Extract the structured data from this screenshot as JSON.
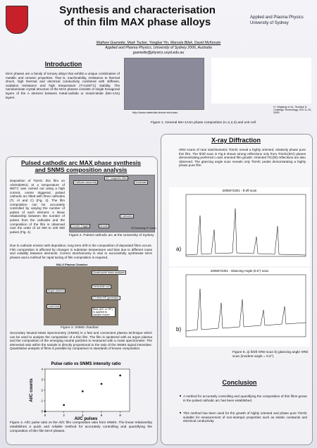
{
  "header": {
    "title": "Synthesis and characterisation of thin film MAX phase alloys",
    "institution": [
      "Applied and Plasma Physics",
      "University of Sydney"
    ],
    "authors": "Mathew Guenette, Mark Tucker, Yongbai Yin, Marcela Bilek, David McKenzie",
    "affiliation": "Applied and Plasma Physics, University of Sydney 2006, Australia",
    "email": "guenette@physics.usyd.edu.au"
  },
  "introduction": {
    "heading": "Introduction",
    "text": "MAX phases are a family of ternary alloys that exhibit a unique combination of metallic and ceramic properties. That is, machinability, resistance to thermal shock, high thermal and electrical conductivity combined with stiffness, oxidation resistance and high temperature (T>1400°C) stability. The nanolaminate crystal structure of the MAX phases consists of single hexagonal layers of the A element between metal-carbide or metal-nitride (Mn+1Xn) layers.",
    "url": "http://www.materials.drexel.edu/max",
    "reference": "H. Högberg et al., Surface & Coatings Technology 193: 6–10, 2005",
    "figure1_caption": "Figure 1. General Mn+1AXn phase composition (n=1,2,3) and unit cell"
  },
  "synthesis": {
    "heading": "Pulsed cathodic arc MAX phase synthesis and SNMS composition analysis",
    "text1": "Deposition of Ti3AlC thin film on Al2O3(0001) at a temperature of 900°C was carried out using a high current, centre triggered, pulsed cathodic arc fitted with three cathodes (Ti, Al and C) (Fig. 2). The film composition can be accurately controlled by varying the number of pulses of each element. A linear relationship between the number of pulses from the cathodes and the composition of the film is observed over the order of 10 000 to 100 000 pulses (Fig. 4).",
    "figure2_labels": [
      "Cathode assembly",
      "90° magnetic filter",
      "Substrate",
      "Cathodes",
      "Centre Trigger",
      "Anode",
      "3D Rendering: R. Danen"
    ],
    "figure2_caption": "Figure 2. Pulsed cathodic arc at the University of Sydney",
    "text2": "Due to cathode erosion with deposition, long term drift in the composition of deposited films occurs. Film composition is affected by changes in substrate temperature and bias due to different mass and volatility between elements. Correct stoichiometry is vital to successfully synthesise MAX phases and a method for rapid tuning of film composition is required.",
    "figure3_labels": [
      "INA-X Plasma Chamber",
      "Quadrupole mass analyser",
      "Heinzlotte coil",
      "Argon plasma",
      "27 MHz RF generator",
      "Load lock",
      "Bias (A/C or RF) is applied to sample holder"
    ],
    "figure3_caption": "Figure 3. SNMS chamber",
    "text3": "Secondary Neutral Mass Spectrometry (SNMS) is a fast and convenient plasma technique which can be used to analyse the composition of a thin film. The film is sputtered with an argon plasma and the composition of the emerging neutral particles is measured with a mass spectrometer. The elemental ratio within the sample is directly proportional to the ratio of the SNMS signal intensities. Quantitative analysis of films is possible by comparison to standards of known composition.",
    "figure4_caption": "Figure 4. Al/C pulse ratio vs the Al/C film composition ratio from SNMS. The linear relationship establishes a quick and reliable method for accurately controlling and quantifying the composition of thin film MAX phases."
  },
  "chart_data": {
    "type": "scatter",
    "title": "Pulse ratio vs SNMS intensity ratio",
    "x_label": "Al/C pulses",
    "y_label": "Al/C counts",
    "annotations": [
      "y = 0.4228x",
      "R² = 0.9503"
    ],
    "x": [
      0,
      2,
      4,
      6,
      8
    ],
    "values": [
      0,
      0.6,
      1.9,
      2.6,
      3.4
    ],
    "color": "#222222",
    "xlim": [
      0,
      9
    ],
    "ylim": [
      0,
      4
    ],
    "xticks": [
      0,
      2,
      4,
      6,
      8
    ],
    "yticks": [
      0,
      1,
      2,
      3,
      4
    ]
  },
  "xrd": {
    "heading": "X-ray Diffraction",
    "text": "XRD scans of near stoichiometric Ti3AlC reveal a highly oriented, relatively phase pure thin film. The θ/2θ scan in Fig.5 shows strong reflections only from Ti3AlC(00ℓ) planes demonstrating preferred c-axis oriented film growth. Oriented TiC(ℓℓℓ) reflections are also observed. The glancing angle scan reveals only Ti3AlC peaks demonstrating a highly phase pure film.",
    "plot_a_title": "2006072301 - θ-2θ scan",
    "plot_a_label": "a)",
    "plot_b_title": "2006072301 - Glancing Angle (0.6°) scan",
    "plot_b_label": "b)",
    "figure5_caption": "Figure 5. a) θ/2θ XRD scan b) glancing angle XRD scan (incident angle = 0.6°)"
  },
  "conclusion": {
    "heading": "Conclusion",
    "bullets": [
      "A method for accurately controlling and quantifying the composition of thin films grown in the pulsed cathodic arc has been established.",
      "This method has been used for the growth of highly oriented and phase pure Ti3AlC suitable for measurement of non-isotropic properties such as elastic constants and electrical conductivity."
    ]
  }
}
